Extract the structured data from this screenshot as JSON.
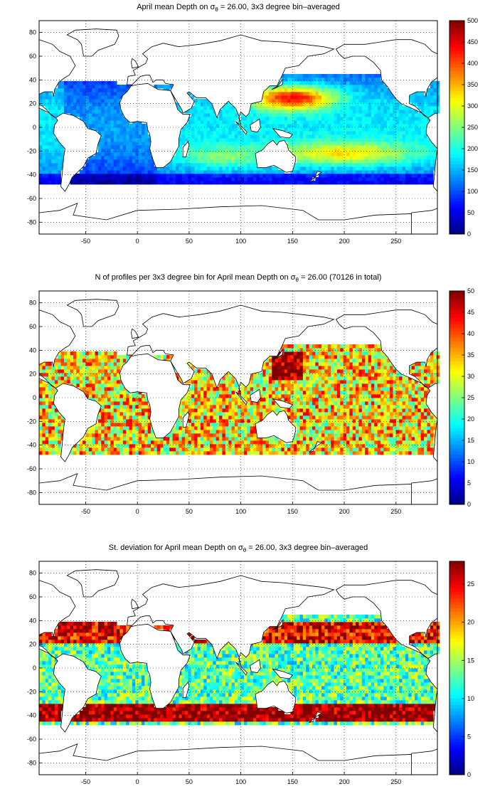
{
  "chart_data": [
    {
      "type": "heatmap",
      "title_parts": {
        "pre": "April mean Depth on ",
        "sym": "σ",
        "sub": "θ",
        "post": " = 26.00, 3x3 degree bin–averaged"
      },
      "xlim": [
        -95,
        290
      ],
      "ylim": [
        -90,
        90
      ],
      "xticks": [
        -50,
        0,
        50,
        100,
        150,
        200,
        250
      ],
      "yticks": [
        -80,
        -60,
        -40,
        -20,
        0,
        20,
        40,
        60,
        80
      ],
      "grid": true,
      "colorbar": {
        "min": 0,
        "max": 500,
        "ticks": [
          0,
          50,
          100,
          150,
          200,
          250,
          300,
          350,
          400,
          450,
          500
        ]
      },
      "field": "depth"
    },
    {
      "type": "heatmap",
      "title_parts": {
        "pre": "N of profiles per 3x3 degree bin for April mean Depth on ",
        "sym": "σ",
        "sub": "θ",
        "post": " = 26.00 (70126 in total)"
      },
      "xlim": [
        -95,
        290
      ],
      "ylim": [
        -90,
        90
      ],
      "xticks": [
        -50,
        0,
        50,
        100,
        150,
        200,
        250
      ],
      "yticks": [
        -80,
        -60,
        -40,
        -20,
        0,
        20,
        40,
        60,
        80
      ],
      "grid": true,
      "colorbar": {
        "min": 0,
        "max": 50,
        "ticks": [
          0,
          5,
          10,
          15,
          20,
          25,
          30,
          35,
          40,
          45,
          50
        ]
      },
      "field": "count"
    },
    {
      "type": "heatmap",
      "title_parts": {
        "pre": "St. deviation for April mean Depth on ",
        "sym": "σ",
        "sub": "θ",
        "post": " = 26.00, 3x3 degree bin–averaged"
      },
      "xlim": [
        -95,
        290
      ],
      "ylim": [
        -90,
        90
      ],
      "xticks": [
        -50,
        0,
        50,
        100,
        150,
        200,
        250
      ],
      "yticks": [
        -80,
        -60,
        -40,
        -20,
        0,
        20,
        40,
        60,
        80
      ],
      "grid": true,
      "colorbar": {
        "min": 0,
        "max": 28,
        "ticks": [
          0,
          5,
          10,
          15,
          20,
          25
        ]
      },
      "field": "std"
    }
  ]
}
